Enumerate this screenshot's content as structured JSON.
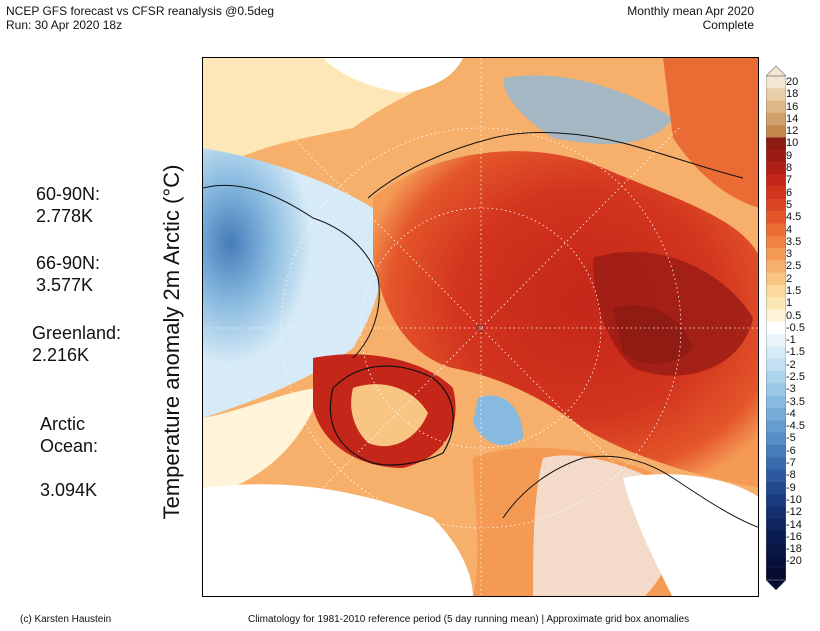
{
  "header": {
    "title_line1": "NCEP GFS forecast vs CFSR reanalysis @0.5deg",
    "title_line2": "Run: 30 Apr 2020 18z",
    "period_line1": "Monthly mean Apr 2020",
    "period_line2": "Complete"
  },
  "ylabel": "Temperature anomaly 2m Arctic (°C)",
  "stats": [
    {
      "label": "60-90N:",
      "value": "2.778K"
    },
    {
      "label": "66-90N:",
      "value": "3.577K"
    },
    {
      "label": "Greenland:",
      "value": "2.216K"
    },
    {
      "label": "Arctic\nOcean:",
      "value": "3.094K"
    }
  ],
  "colorbar": {
    "labels": [
      "20",
      "18",
      "16",
      "14",
      "12",
      "10",
      "9",
      "8",
      "7",
      "6",
      "5",
      "4.5",
      "4",
      "3.5",
      "3",
      "2.5",
      "2",
      "1.5",
      "1",
      "0.5",
      "-0.5",
      "-1",
      "-1.5",
      "-2",
      "-2.5",
      "-3",
      "-3.5",
      "-4",
      "-4.5",
      "-5",
      "-6",
      "-7",
      "-8",
      "-9",
      "-10",
      "-12",
      "-14",
      "-16",
      "-18",
      "-20"
    ],
    "colors": [
      "#f4e7d2",
      "#e8cfa8",
      "#deb887",
      "#d2a06a",
      "#c4894f",
      "#8b1a12",
      "#9c1c14",
      "#b01f16",
      "#c42619",
      "#d2341e",
      "#dc4523",
      "#e4562a",
      "#ea6c34",
      "#f08242",
      "#f49a55",
      "#f7b06b",
      "#f9c583",
      "#fbd89c",
      "#fde7b7",
      "#fff4d9",
      "#ffffff",
      "#eaf4fb",
      "#d6ebf7",
      "#c2e0f2",
      "#aed4ec",
      "#9ac7e5",
      "#88badf",
      "#76acd7",
      "#659dce",
      "#558dc4",
      "#467cb9",
      "#386bac",
      "#2d5a9e",
      "#234a8f",
      "#1b3b7f",
      "#142e6f",
      "#0f2560",
      "#0b1c52",
      "#091646",
      "#07113b",
      "#050c30"
    ]
  },
  "footer": {
    "left": "(c) Karsten Haustein",
    "right": "Climatology for 1981-2010 reference period (5 day running mean) | Approximate grid box anomalies"
  }
}
